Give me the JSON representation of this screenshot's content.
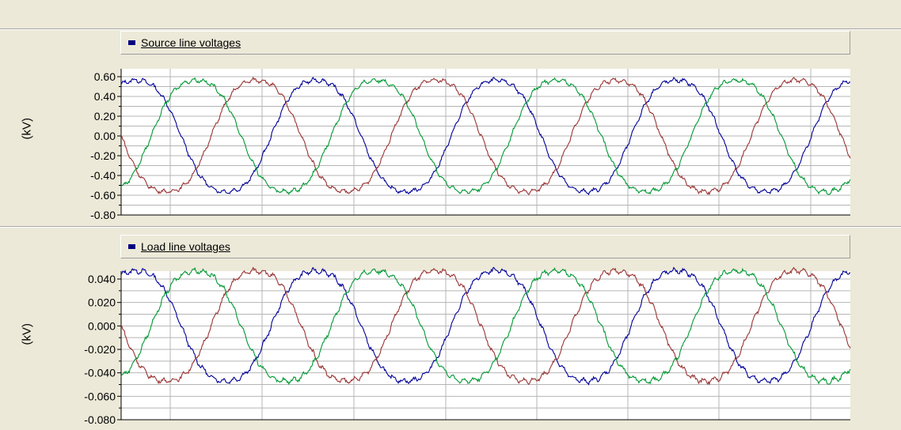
{
  "chart_data": [
    {
      "type": "line",
      "title": "Source line voltages",
      "ylabel": "(kV)",
      "ylim": [
        -0.8,
        0.7
      ],
      "y_ticks": [
        "0.60",
        "0.40",
        "0.20",
        "0.00",
        "-0.20",
        "-0.40",
        "-0.60",
        "-0.80"
      ],
      "y_tick_values": [
        0.6,
        0.4,
        0.2,
        0.0,
        -0.2,
        -0.4,
        -0.6,
        -0.8
      ],
      "grid": true,
      "legend": "top-left",
      "amplitude": 0.6,
      "cycles": 4.05,
      "series": [
        {
          "color": "#000099",
          "phase_deg": 60,
          "ripple": 0.03
        },
        {
          "color": "#993333",
          "phase_deg": 180,
          "ripple": 0.03
        },
        {
          "color": "#009933",
          "phase_deg": 300,
          "ripple": 0.03
        }
      ]
    },
    {
      "type": "line",
      "title": "Load line voltages",
      "ylabel": "(kV)",
      "ylim": [
        -0.08,
        0.06
      ],
      "y_ticks": [
        "0.040",
        "0.020",
        "0.000",
        "-0.020",
        "-0.040",
        "-0.060",
        "-0.080"
      ],
      "y_tick_values": [
        0.04,
        0.02,
        0.0,
        -0.02,
        -0.04,
        -0.06,
        -0.08
      ],
      "grid": true,
      "legend": "top-left",
      "amplitude": 0.05,
      "cycles": 4.05,
      "series": [
        {
          "color": "#000099",
          "phase_deg": 60,
          "ripple": 0.003
        },
        {
          "color": "#993333",
          "phase_deg": 180,
          "ripple": 0.003
        },
        {
          "color": "#009933",
          "phase_deg": 300,
          "ripple": 0.003
        }
      ]
    }
  ]
}
